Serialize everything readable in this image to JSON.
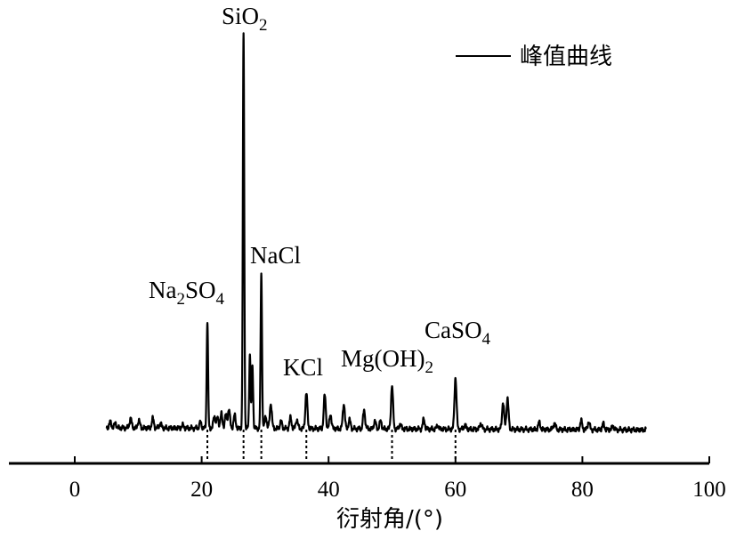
{
  "chart_data": {
    "type": "line",
    "xlabel": "衍射角/(°)",
    "ylabel": "",
    "xlim": [
      -10,
      100
    ],
    "xticks": [
      0,
      20,
      40,
      60,
      80,
      100
    ],
    "xtick_labels": [
      "0",
      "20",
      "40",
      "60",
      "80",
      "100"
    ],
    "grid": false,
    "legend": {
      "position": "top-right",
      "entries": [
        "峰值曲线"
      ]
    },
    "line_color": "#000000",
    "series": [
      {
        "name": "峰值曲线",
        "baseline": 0,
        "x_range": [
          5,
          90
        ],
        "peaks": [
          {
            "x": 5.6,
            "y": 1.0
          },
          {
            "x": 6.4,
            "y": 0.8
          },
          {
            "x": 8.8,
            "y": 1.6
          },
          {
            "x": 10.1,
            "y": 1.3
          },
          {
            "x": 12.3,
            "y": 1.6
          },
          {
            "x": 13.5,
            "y": 0.8
          },
          {
            "x": 17.0,
            "y": 0.5
          },
          {
            "x": 19.8,
            "y": 1.0
          },
          {
            "x": 20.9,
            "y": 18.0
          },
          {
            "x": 22.0,
            "y": 2.0
          },
          {
            "x": 22.5,
            "y": 1.7
          },
          {
            "x": 23.1,
            "y": 2.4
          },
          {
            "x": 23.8,
            "y": 2.2
          },
          {
            "x": 24.3,
            "y": 3.2
          },
          {
            "x": 25.2,
            "y": 2.2
          },
          {
            "x": 26.6,
            "y": 66.0
          },
          {
            "x": 27.6,
            "y": 12.5
          },
          {
            "x": 28.0,
            "y": 10.5
          },
          {
            "x": 29.4,
            "y": 26.0
          },
          {
            "x": 30.1,
            "y": 2.0
          },
          {
            "x": 30.9,
            "y": 4.2
          },
          {
            "x": 32.5,
            "y": 1.2
          },
          {
            "x": 34.0,
            "y": 1.8
          },
          {
            "x": 35.0,
            "y": 1.5
          },
          {
            "x": 36.5,
            "y": 6.0
          },
          {
            "x": 39.4,
            "y": 5.6
          },
          {
            "x": 40.3,
            "y": 2.4
          },
          {
            "x": 42.4,
            "y": 4.2
          },
          {
            "x": 43.3,
            "y": 1.5
          },
          {
            "x": 45.6,
            "y": 3.1
          },
          {
            "x": 47.3,
            "y": 1.3
          },
          {
            "x": 48.2,
            "y": 1.3
          },
          {
            "x": 50.0,
            "y": 7.2
          },
          {
            "x": 51.3,
            "y": 0.8
          },
          {
            "x": 55.0,
            "y": 1.6
          },
          {
            "x": 57.2,
            "y": 0.6
          },
          {
            "x": 60.0,
            "y": 8.6
          },
          {
            "x": 61.5,
            "y": 0.7
          },
          {
            "x": 64.0,
            "y": 1.0
          },
          {
            "x": 67.5,
            "y": 4.5
          },
          {
            "x": 68.2,
            "y": 5.2
          },
          {
            "x": 73.2,
            "y": 1.2
          },
          {
            "x": 75.6,
            "y": 1.1
          },
          {
            "x": 79.8,
            "y": 1.5
          },
          {
            "x": 81.0,
            "y": 1.3
          },
          {
            "x": 83.3,
            "y": 1.0
          },
          {
            "x": 84.8,
            "y": 0.6
          }
        ]
      }
    ],
    "annotations": [
      {
        "x": 20.9,
        "parts": [
          {
            "t": "Na"
          },
          {
            "t": "2",
            "sub": true
          },
          {
            "t": "SO"
          },
          {
            "t": "4",
            "sub": true
          }
        ]
      },
      {
        "x": 26.6,
        "parts": [
          {
            "t": "SiO"
          },
          {
            "t": "2",
            "sub": true
          }
        ]
      },
      {
        "x": 29.4,
        "parts": [
          {
            "t": "NaCl"
          }
        ]
      },
      {
        "x": 36.5,
        "parts": [
          {
            "t": "KCl"
          }
        ]
      },
      {
        "x": 50.0,
        "parts": [
          {
            "t": "Mg(OH)"
          },
          {
            "t": "2",
            "sub": true
          }
        ]
      },
      {
        "x": 60.0,
        "parts": [
          {
            "t": "CaSO"
          },
          {
            "t": "4",
            "sub": true
          }
        ]
      }
    ],
    "reference_lines_x": [
      20.9,
      26.6,
      29.4,
      36.5,
      50.0,
      60.0
    ]
  }
}
